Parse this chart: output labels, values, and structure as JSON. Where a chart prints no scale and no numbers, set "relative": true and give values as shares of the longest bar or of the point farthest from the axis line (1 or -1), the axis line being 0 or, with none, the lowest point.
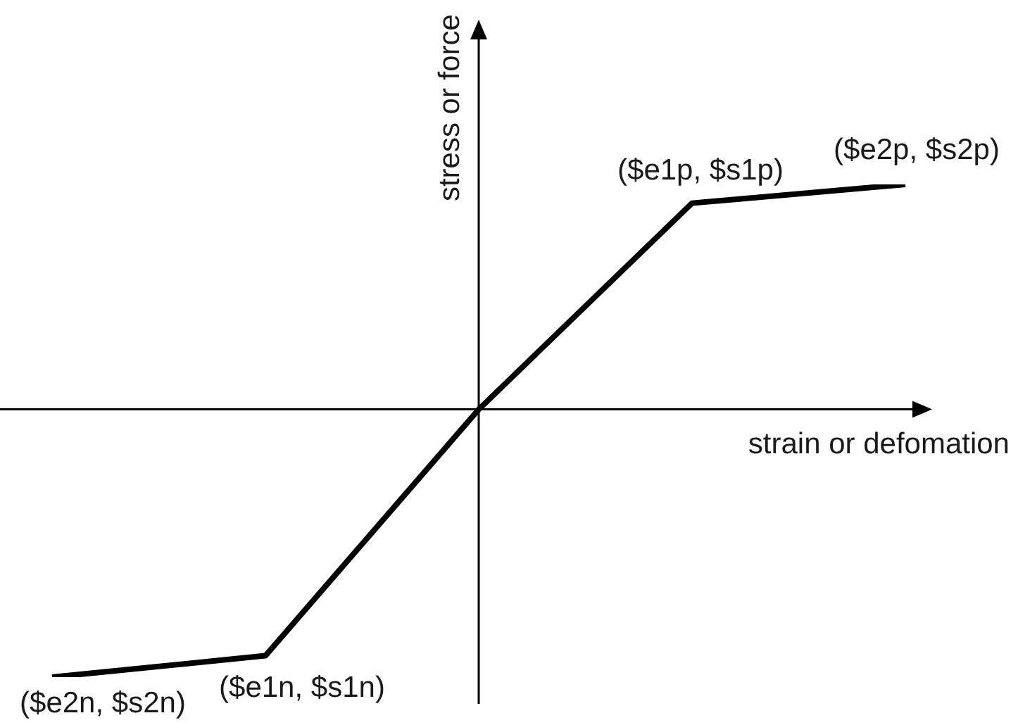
{
  "chart_data": {
    "type": "line",
    "categories": [
      null,
      null,
      null,
      null,
      null
    ],
    "values": [
      -1,
      -0.92,
      0,
      0.77,
      0.84
    ],
    "color": "#000000",
    "relative": true,
    "marker": "none",
    "xlabel": "strain or defomation",
    "ylabel": "stress or force",
    "annotations": [
      "($e2n, $s2n)",
      "($e1n, $s1n)",
      "($e1p, $s1p)",
      "($e2p, $s2p)"
    ]
  }
}
